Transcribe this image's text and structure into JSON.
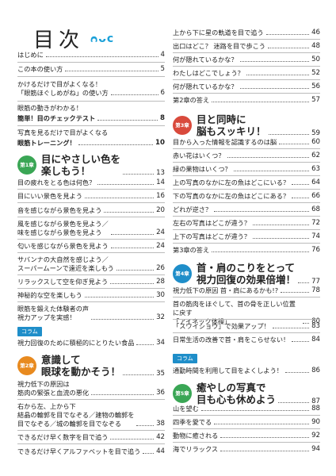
{
  "header": {
    "title": "目次",
    "deco": "ᴒᴗᴄ"
  },
  "colors": {
    "accent": "#1f8ec9",
    "chap1": "#3aa655",
    "chap2": "#e88a1f",
    "chap3": "#d94a3c",
    "chap4": "#1f8ec9",
    "chap5": "#3aa655"
  },
  "left": {
    "intro": [
      {
        "text": "はじめに",
        "page": "4"
      },
      {
        "text": "この本の使い方",
        "page": "5"
      },
      {
        "text": "かけるだけで目がよくなる！\n「眼筋ほぐしめがね」の使い方",
        "page": "6"
      },
      {
        "text": "眼筋の動きがわかる！",
        "page": ""
      },
      {
        "text": "簡単！目のチェックテスト",
        "page": "8"
      },
      {
        "text": "写真を見るだけで目がよくなる",
        "page": ""
      },
      {
        "text": "眼筋トレーニング！",
        "page": "10"
      }
    ],
    "ch1": {
      "badge": "第1章",
      "title": "目にやさしい色を\n楽しもう！",
      "page": "13",
      "items": [
        {
          "text": "目の疲れをとる色は何色？",
          "page": "14"
        },
        {
          "text": "目にいい景色を見よう",
          "page": "16"
        },
        {
          "text": "音を感じながら景色を見よう",
          "page": "20"
        },
        {
          "text": "風を感じながら景色を見よう／\n味を感じながら景色を見よう",
          "page": "24"
        },
        {
          "text": "匂いを感じながら景色を見よう",
          "page": "24"
        },
        {
          "text": "サバンナの大自然を感じよう／\nスーパームーンで遠近を楽しもう",
          "page": "26"
        },
        {
          "text": "リラックスして空を仰ぎ見よう",
          "page": "28"
        },
        {
          "text": "神秘的な空を楽しもう",
          "page": "30"
        },
        {
          "text": "眼筋を鍛えた体験者の声\n視力アップを実感！",
          "page": "32"
        }
      ],
      "column_label": "コラム",
      "column": {
        "text": "視力回復のために積極的にとりたい食品",
        "page": "34"
      }
    },
    "ch2": {
      "badge": "第2章",
      "title": "意識して\n眼球を動かそう！",
      "page": "35",
      "items": [
        {
          "text": "視力低下の原因は\n筋肉の緊張と血流の悪化",
          "page": "36"
        },
        {
          "text": "右から左、上から下\n結晶の輪郭を目でなぞる／建物の輪郭を\n目でなぞる／城の輪郭を目でなぞる",
          "page": "38"
        },
        {
          "text": "できるだけ早く数字を目で追う",
          "page": "42"
        },
        {
          "text": "できるだけ早くアルファベットを目で追う",
          "page": "44"
        }
      ]
    }
  },
  "right": {
    "top": [
      {
        "text": "上から下に星の軌道を目で追う",
        "page": "46"
      },
      {
        "text": "出口はどこ？ 迷路を目で歩こう",
        "page": "48"
      },
      {
        "text": "何が隠れているかな？",
        "page": "50"
      },
      {
        "text": "わたしはどこでしょう？",
        "page": "52"
      },
      {
        "text": "何が隠れているかな？",
        "page": "56"
      },
      {
        "text": "第2章の答え",
        "page": "57"
      }
    ],
    "ch3": {
      "badge": "第3章",
      "title": "目と同時に\n脳もスッキリ！",
      "page": "59",
      "items": [
        {
          "text": "目から入った情報を認識するのは脳",
          "page": "60"
        },
        {
          "text": "赤い花はいくつ？",
          "page": "62"
        },
        {
          "text": "緑の果物はいくつ？",
          "page": "63"
        },
        {
          "text": "上の写真のなかに左の魚はどこにいる？",
          "page": "64"
        },
        {
          "text": "下の写真のなかに左の魚はどこにある？",
          "page": "66"
        },
        {
          "text": "どれが逆さ？",
          "page": "68"
        },
        {
          "text": "左右の写真はどこが違う？",
          "page": "72"
        },
        {
          "text": "上下の写真はどこが違う？",
          "page": "74"
        },
        {
          "text": "第3章の答え",
          "page": "76"
        }
      ]
    },
    "ch4": {
      "badge": "第4章",
      "title": "首・肩のこりをとって\n視力回復の効果倍増！",
      "page": "77",
      "items": [
        {
          "text": "視力低下の原因 首・肩にあるかも!?",
          "page": "78"
        },
        {
          "text": "首の筋肉をほぐして、首の骨を正しい位置に戻す\n「アイネック体操」",
          "page": "80"
        },
        {
          "text": "「スワイショウ」で効果アップ！",
          "page": "83"
        },
        {
          "text": "日常生活の改善で首・肩をこらせない！",
          "page": "84"
        }
      ],
      "column_label": "コラム",
      "column": {
        "text": "通勤時間を利用して目をよくしよう！",
        "page": "86"
      }
    },
    "ch5": {
      "badge": "第5章",
      "title": "癒やしの写真で\n目も心も休めよう",
      "page": "87",
      "items": [
        {
          "text": "山を望む",
          "page": "88"
        },
        {
          "text": "四季を愛でる",
          "page": "90"
        },
        {
          "text": "動物に癒される",
          "page": "92"
        },
        {
          "text": "海でリラックス",
          "page": "94"
        }
      ]
    }
  }
}
